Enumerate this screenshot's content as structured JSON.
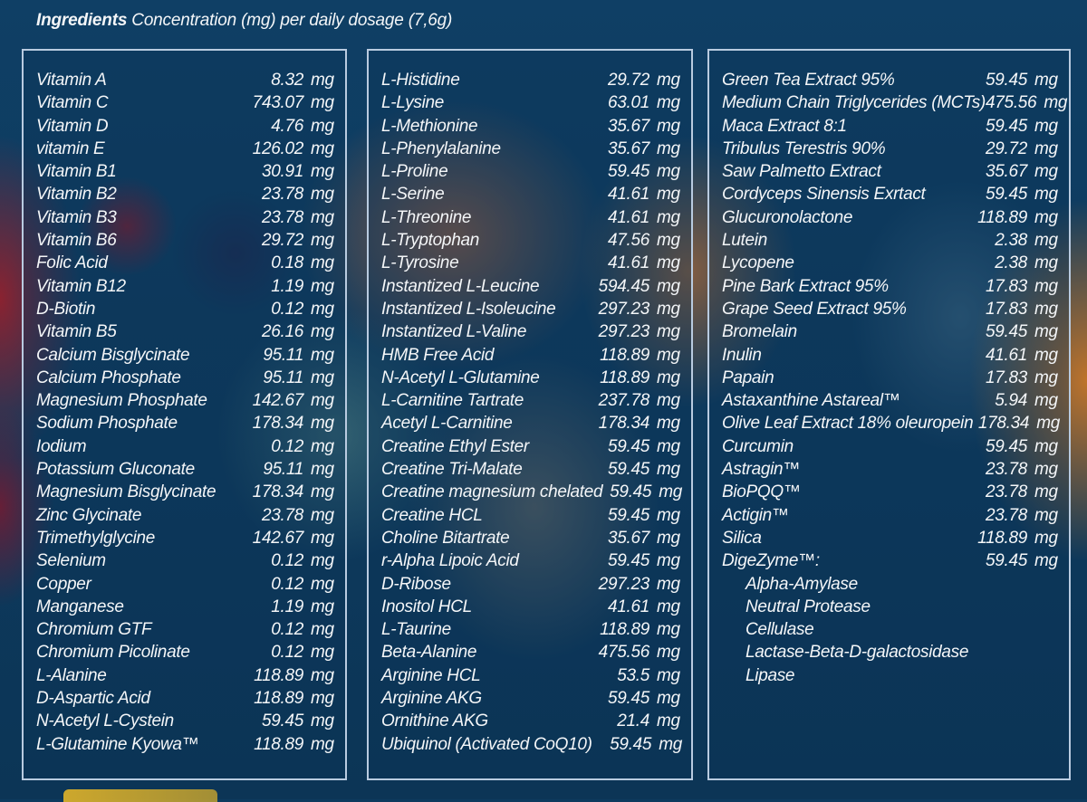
{
  "header": {
    "bold": "Ingredients",
    "rest": " Concentration (mg) per daily dosage (7,6g)"
  },
  "columns": [
    [
      {
        "name": "Vitamin A",
        "value": "8.32",
        "unit": "mg"
      },
      {
        "name": "Vitamin C",
        "value": "743.07",
        "unit": "mg"
      },
      {
        "name": "Vitamin D",
        "value": "4.76",
        "unit": "mg"
      },
      {
        "name": "vitamin E",
        "value": "126.02",
        "unit": "mg"
      },
      {
        "name": "Vitamin B1",
        "value": "30.91",
        "unit": "mg"
      },
      {
        "name": "Vitamin B2",
        "value": "23.78",
        "unit": "mg"
      },
      {
        "name": "Vitamin B3",
        "value": "23.78",
        "unit": "mg"
      },
      {
        "name": "Vitamin B6",
        "value": "29.72",
        "unit": "mg"
      },
      {
        "name": "Folic Acid",
        "value": "0.18",
        "unit": "mg"
      },
      {
        "name": "Vitamin B12",
        "value": "1.19",
        "unit": "mg"
      },
      {
        "name": "D-Biotin",
        "value": "0.12",
        "unit": "mg"
      },
      {
        "name": "Vitamin B5",
        "value": "26.16",
        "unit": "mg"
      },
      {
        "name": "Calcium  Bisglycinate",
        "value": "95.11",
        "unit": "mg"
      },
      {
        "name": "Calcium Phosphate",
        "value": "95.11",
        "unit": "mg"
      },
      {
        "name": "Magnesium Phosphate",
        "value": "142.67",
        "unit": "mg"
      },
      {
        "name": "Sodium Phosphate",
        "value": "178.34",
        "unit": "mg"
      },
      {
        "name": "Iodium",
        "value": "0.12",
        "unit": "mg"
      },
      {
        "name": "Potassium Gluconate",
        "value": "95.11",
        "unit": "mg"
      },
      {
        "name": "Magnesium Bisglycinate",
        "value": "178.34",
        "unit": "mg"
      },
      {
        "name": "Zinc Glycinate",
        "value": "23.78",
        "unit": "mg"
      },
      {
        "name": "Trimethylglycine",
        "value": "142.67",
        "unit": "mg"
      },
      {
        "name": "Selenium",
        "value": "0.12",
        "unit": "mg"
      },
      {
        "name": "Copper",
        "value": "0.12",
        "unit": "mg"
      },
      {
        "name": "Manganese",
        "value": "1.19",
        "unit": "mg"
      },
      {
        "name": "Chromium GTF",
        "value": "0.12",
        "unit": "mg"
      },
      {
        "name": "Chromium Picolinate",
        "value": "0.12",
        "unit": "mg"
      },
      {
        "name": "L-Alanine",
        "value": "118.89",
        "unit": "mg"
      },
      {
        "name": "D-Aspartic Acid",
        "value": "118.89",
        "unit": "mg"
      },
      {
        "name": "N-Acetyl L-Cystein",
        "value": "59.45",
        "unit": "mg"
      },
      {
        "name": "L-Glutamine Kyowa™",
        "value": "118.89",
        "unit": "mg"
      }
    ],
    [
      {
        "name": "L-Histidine",
        "value": "29.72",
        "unit": "mg"
      },
      {
        "name": "L-Lysine",
        "value": "63.01",
        "unit": "mg"
      },
      {
        "name": "L-Methionine",
        "value": "35.67",
        "unit": "mg"
      },
      {
        "name": "L-Phenylalanine",
        "value": "35.67",
        "unit": "mg"
      },
      {
        "name": "L-Proline",
        "value": "59.45",
        "unit": "mg"
      },
      {
        "name": "L-Serine",
        "value": "41.61",
        "unit": "mg"
      },
      {
        "name": "L-Threonine",
        "value": "41.61",
        "unit": "mg"
      },
      {
        "name": "L-Tryptophan",
        "value": "47.56",
        "unit": "mg"
      },
      {
        "name": "L-Tyrosine",
        "value": "41.61",
        "unit": "mg"
      },
      {
        "name": "Instantized L-Leucine",
        "value": "594.45",
        "unit": "mg"
      },
      {
        "name": "Instantized L-Isoleucine",
        "value": "297.23",
        "unit": "mg"
      },
      {
        "name": "Instantized L-Valine",
        "value": "297.23",
        "unit": "mg"
      },
      {
        "name": "HMB Free Acid",
        "value": "118.89",
        "unit": "mg"
      },
      {
        "name": "N-Acetyl L-Glutamine",
        "value": "118.89",
        "unit": "mg"
      },
      {
        "name": "L-Carnitine Tartrate",
        "value": "237.78",
        "unit": "mg"
      },
      {
        "name": "Acetyl L-Carnitine",
        "value": "178.34",
        "unit": "mg"
      },
      {
        "name": "Creatine Ethyl Ester",
        "value": "59.45",
        "unit": "mg"
      },
      {
        "name": "Creatine Tri-Malate",
        "value": "59.45",
        "unit": "mg"
      },
      {
        "name": "Creatine magnesium chelated",
        "value": "59.45",
        "unit": "mg"
      },
      {
        "name": "Creatine HCL",
        "value": "59.45",
        "unit": "mg"
      },
      {
        "name": "Choline Bitartrate",
        "value": "35.67",
        "unit": "mg"
      },
      {
        "name": "r-Alpha Lipoic Acid",
        "value": "59.45",
        "unit": "mg"
      },
      {
        "name": "D-Ribose",
        "value": "297.23",
        "unit": "mg"
      },
      {
        "name": "Inositol HCL",
        "value": "41.61",
        "unit": "mg"
      },
      {
        "name": "L-Taurine",
        "value": "118.89",
        "unit": "mg"
      },
      {
        "name": "Beta-Alanine",
        "value": "475.56",
        "unit": "mg"
      },
      {
        "name": "Arginine HCL",
        "value": "53.5",
        "unit": "mg"
      },
      {
        "name": "Arginine AKG",
        "value": "59.45",
        "unit": "mg"
      },
      {
        "name": "Ornithine AKG",
        "value": "21.4",
        "unit": "mg"
      },
      {
        "name": "Ubiquinol (Activated CoQ10)",
        "value": "59.45",
        "unit": "mg"
      }
    ],
    [
      {
        "name": "Green Tea Extract 95%",
        "value": "59.45",
        "unit": "mg"
      },
      {
        "name": "Medium Chain Triglycerides (MCTs)",
        "value": "475.56",
        "unit": "mg"
      },
      {
        "name": "Maca Extract 8:1",
        "value": "59.45",
        "unit": "mg"
      },
      {
        "name": "Tribulus Terestris 90%",
        "value": "29.72",
        "unit": "mg"
      },
      {
        "name": "Saw Palmetto Extract",
        "value": "35.67",
        "unit": "mg"
      },
      {
        "name": "Cordyceps Sinensis Exrtact",
        "value": "59.45",
        "unit": "mg"
      },
      {
        "name": "Glucuronolactone",
        "value": "118.89",
        "unit": "mg"
      },
      {
        "name": "Lutein",
        "value": "2.38",
        "unit": "mg"
      },
      {
        "name": "Lycopene",
        "value": "2.38",
        "unit": "mg"
      },
      {
        "name": "Pine Bark Extract 95%",
        "value": "17.83",
        "unit": "mg"
      },
      {
        "name": "Grape Seed Extract 95%",
        "value": "17.83",
        "unit": "mg"
      },
      {
        "name": "Bromelain",
        "value": "59.45",
        "unit": "mg"
      },
      {
        "name": "Inulin",
        "value": "41.61",
        "unit": "mg"
      },
      {
        "name": "Papain",
        "value": "17.83",
        "unit": "mg"
      },
      {
        "name": "Astaxanthine Astareal™",
        "value": "5.94",
        "unit": "mg"
      },
      {
        "name": "Olive Leaf Extract 18% oleuropein",
        "value": "178.34",
        "unit": "mg"
      },
      {
        "name": "Curcumin",
        "value": "59.45",
        "unit": "mg"
      },
      {
        "name": "Astragin™",
        "value": "23.78",
        "unit": "mg"
      },
      {
        "name": "BioPQQ™",
        "value": "23.78",
        "unit": "mg"
      },
      {
        "name": "Actigin™",
        "value": "23.78",
        "unit": "mg"
      },
      {
        "name": "Silica",
        "value": "118.89",
        "unit": "mg"
      },
      {
        "name": "DigeZyme™:",
        "value": "59.45",
        "unit": "mg"
      },
      {
        "name": "Alpha-Amylase",
        "value": "",
        "unit": "",
        "sub": true
      },
      {
        "name": "Neutral Protease",
        "value": "",
        "unit": "",
        "sub": true
      },
      {
        "name": "Cellulase",
        "value": "",
        "unit": "",
        "sub": true
      },
      {
        "name": "Lactase-Beta-D-galactosidase",
        "value": "",
        "unit": "",
        "sub": true
      },
      {
        "name": "Lipase",
        "value": "",
        "unit": "",
        "sub": true
      }
    ]
  ],
  "colors": {
    "background": "#0d3a5e",
    "border": "#b9cbe0",
    "text": "#f4f6f8"
  }
}
